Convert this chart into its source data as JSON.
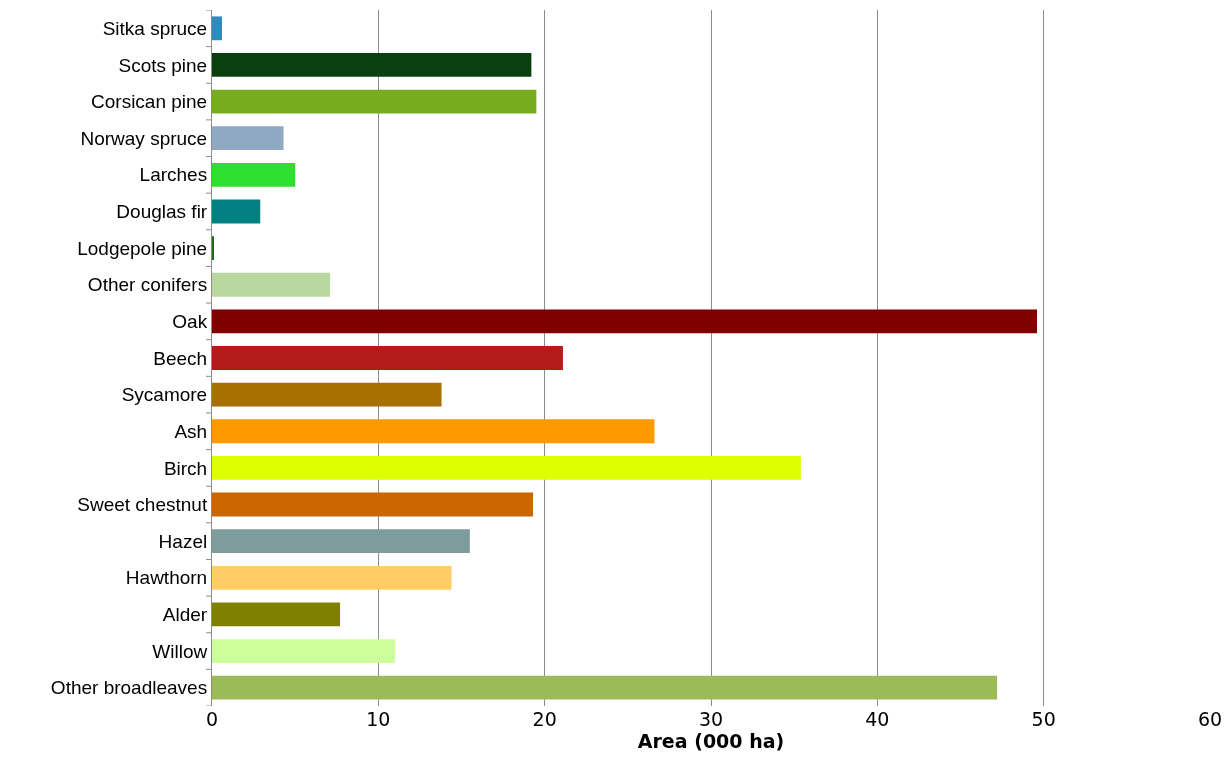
{
  "chart_data": {
    "type": "bar",
    "orientation": "horizontal",
    "xlabel": "Area (000 ha)",
    "categories": [
      "Sitka spruce",
      "Scots pine",
      "Corsican pine",
      "Norway spruce",
      "Larches",
      "Douglas fir",
      "Lodgepole pine",
      "Other conifers",
      "Oak",
      "Beech",
      "Sycamore",
      "Ash",
      "Birch",
      "Sweet chestnut",
      "Hazel",
      "Hawthorn",
      "Alder",
      "Willow",
      "Other broadleaves"
    ],
    "values": [
      0.6,
      19.2,
      19.5,
      4.3,
      5.0,
      2.9,
      0.1,
      7.1,
      49.6,
      21.1,
      13.8,
      26.6,
      35.4,
      19.3,
      15.5,
      14.4,
      7.7,
      11.0,
      47.2
    ],
    "colors": [
      "#2e8bc0",
      "#0a4010",
      "#77ac1e",
      "#8fa8c4",
      "#2ee02e",
      "#008080",
      "#1a6b1a",
      "#b8d8a0",
      "#800000",
      "#b41c1c",
      "#a87000",
      "#ff9900",
      "#ddff00",
      "#cc6600",
      "#7f9c9c",
      "#ffcc66",
      "#808000",
      "#ccff99",
      "#9bbb59"
    ],
    "xlim": [
      0,
      60
    ],
    "xticks": [
      0,
      10,
      20,
      30,
      40,
      50,
      60
    ],
    "grid": "x"
  }
}
